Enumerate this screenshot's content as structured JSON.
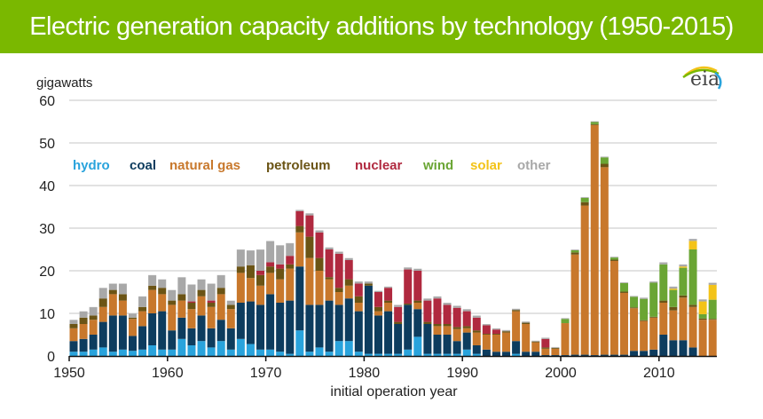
{
  "header": {
    "title": "Electric generation capacity additions by technology (1950-2015)",
    "background_color": "#7ab800"
  },
  "logo": {
    "text": "eia"
  },
  "chart_data": {
    "type": "bar",
    "stacked": true,
    "title": "Electric generation capacity additions by technology (1950-2015)",
    "ylabel": "gigawatts",
    "xlabel": "initial operation year",
    "ylim": [
      0,
      60
    ],
    "yticks": [
      0,
      10,
      20,
      30,
      40,
      50,
      60
    ],
    "xticks": [
      1950,
      1960,
      1970,
      1980,
      1990,
      2000,
      2010
    ],
    "grid": true,
    "legend_position": "top-left, inline above bars",
    "x": [
      1950,
      1951,
      1952,
      1953,
      1954,
      1955,
      1956,
      1957,
      1958,
      1959,
      1960,
      1961,
      1962,
      1963,
      1964,
      1965,
      1966,
      1967,
      1968,
      1969,
      1970,
      1971,
      1972,
      1973,
      1974,
      1975,
      1976,
      1977,
      1978,
      1979,
      1980,
      1981,
      1982,
      1983,
      1984,
      1985,
      1986,
      1987,
      1988,
      1989,
      1990,
      1991,
      1992,
      1993,
      1994,
      1995,
      1996,
      1997,
      1998,
      1999,
      2000,
      2001,
      2002,
      2003,
      2004,
      2005,
      2006,
      2007,
      2008,
      2009,
      2010,
      2011,
      2012,
      2013,
      2014,
      2015
    ],
    "series": [
      {
        "name": "hydro",
        "color": "#29a3dc",
        "values": [
          1,
          1,
          1.5,
          2,
          1,
          1.5,
          1.2,
          1.5,
          2.5,
          1.5,
          1.5,
          4,
          2.5,
          3.5,
          2,
          3.5,
          1.5,
          4,
          2.8,
          1.5,
          1.5,
          1,
          0.5,
          6,
          1,
          2,
          1,
          3.5,
          3.5,
          1,
          0.5,
          0.5,
          0.5,
          0.5,
          1.5,
          4.5,
          0.5,
          0.5,
          0.5,
          0.5,
          1.5,
          0.5,
          0,
          0,
          0,
          0.5,
          0,
          0,
          0,
          0,
          0,
          0,
          0,
          0,
          0,
          0,
          0,
          0,
          0,
          0,
          0,
          0,
          0,
          0,
          0,
          0
        ]
      },
      {
        "name": "coal",
        "color": "#0d3c5e",
        "values": [
          2.5,
          3,
          3.5,
          6,
          8.5,
          8,
          3.5,
          5.5,
          7.5,
          9,
          4.5,
          5,
          4,
          6,
          4.5,
          5,
          5,
          8.5,
          10,
          10.5,
          13,
          11.5,
          12.5,
          15,
          11,
          10,
          12,
          8.5,
          10,
          9.5,
          16,
          9,
          10,
          7,
          10.5,
          6.5,
          7,
          4.5,
          4.5,
          3,
          4,
          2,
          1.5,
          1,
          1,
          3,
          1,
          1,
          0.2,
          0.2,
          0.2,
          0.3,
          0.3,
          0.2,
          0.3,
          0.3,
          0.3,
          1.2,
          1.2,
          1.5,
          5,
          3.7,
          3.7,
          2,
          0,
          0
        ]
      },
      {
        "name": "natural gas",
        "color": "#c8782c",
        "values": [
          3,
          3.5,
          3.5,
          3.5,
          5,
          3.5,
          4,
          3.5,
          5.5,
          4,
          6,
          4,
          4.5,
          4.5,
          5,
          6,
          4.5,
          7,
          5.5,
          4.5,
          5,
          5.5,
          7.5,
          8,
          11,
          8,
          5,
          3,
          3,
          2,
          0,
          1,
          2,
          0,
          0,
          1.5,
          0,
          2,
          2,
          2.8,
          1,
          3,
          3.5,
          4,
          4.5,
          7,
          6.5,
          2.2,
          1.5,
          1.5,
          7.5,
          23.5,
          35,
          54,
          44,
          22,
          14.5,
          10,
          7,
          7.5,
          7.5,
          7,
          10,
          9.5,
          8.5,
          8.5
        ]
      },
      {
        "name": "petroleum",
        "color": "#6b5415",
        "values": [
          1,
          1.5,
          1,
          2,
          1,
          1.5,
          0.3,
          1,
          1,
          1.5,
          1,
          1.5,
          1.5,
          1.5,
          1,
          1.5,
          1,
          1.5,
          3,
          2.5,
          1.5,
          2.5,
          1,
          1.5,
          5,
          3,
          0.5,
          1,
          1.5,
          1.5,
          0.5,
          1,
          0.5,
          0.5,
          0.3,
          0.5,
          0.5,
          0.5,
          0.5,
          0.5,
          0.5,
          0.5,
          0.2,
          0.2,
          0.3,
          0.3,
          0.3,
          0.2,
          0.3,
          0.2,
          0,
          0.5,
          0.8,
          0.2,
          0.8,
          0.3,
          0.3,
          0.2,
          0.2,
          0.2,
          0.5,
          0.8,
          0.5,
          0.5,
          0.3,
          0.2
        ]
      },
      {
        "name": "nuclear",
        "color": "#b0293f",
        "values": [
          0,
          0,
          0,
          0,
          0,
          0,
          0,
          0,
          0,
          0,
          0,
          0,
          0.3,
          0,
          0.5,
          0,
          0,
          0,
          0,
          1,
          1,
          1,
          2,
          3.5,
          5,
          6,
          6.5,
          8,
          4.5,
          3,
          0,
          3.5,
          3,
          3.5,
          8,
          7,
          5,
          6,
          4.5,
          4.5,
          3.5,
          3,
          2,
          1,
          0,
          0,
          0,
          0,
          2,
          0,
          0,
          0,
          0,
          0,
          0,
          0,
          0,
          0,
          0,
          0,
          0,
          0,
          0,
          0,
          0,
          0
        ]
      },
      {
        "name": "wind",
        "color": "#6aa534",
        "values": [
          0,
          0,
          0,
          0,
          0,
          0,
          0,
          0,
          0,
          0,
          0,
          0,
          0,
          0,
          0,
          0,
          0,
          0,
          0,
          0,
          0,
          0,
          0,
          0,
          0,
          0,
          0,
          0,
          0,
          0,
          0,
          0,
          0,
          0,
          0,
          0,
          0,
          0,
          0,
          0,
          0,
          0,
          0,
          0,
          0,
          0,
          0,
          0,
          0,
          0,
          1,
          0.5,
          1,
          0.5,
          1.5,
          0.5,
          2,
          2.5,
          5,
          8,
          8.5,
          4,
          6.5,
          13,
          1,
          4.5
        ]
      },
      {
        "name": "solar",
        "color": "#f3c318",
        "values": [
          0,
          0,
          0,
          0,
          0,
          0,
          0,
          0,
          0,
          0,
          0,
          0,
          0,
          0,
          0,
          0,
          0,
          0,
          0,
          0,
          0,
          0,
          0,
          0,
          0,
          0,
          0,
          0,
          0,
          0,
          0,
          0,
          0,
          0,
          0,
          0,
          0,
          0,
          0,
          0,
          0,
          0,
          0,
          0,
          0,
          0,
          0,
          0,
          0,
          0,
          0,
          0,
          0,
          0,
          0,
          0,
          0,
          0,
          0,
          0,
          0,
          0.3,
          0.3,
          2,
          3,
          3.5
        ]
      },
      {
        "name": "other",
        "color": "#a8a8a8",
        "values": [
          1,
          1.5,
          2,
          2.5,
          1.5,
          2.5,
          1,
          2.5,
          2.5,
          2,
          2.5,
          4,
          4,
          2.5,
          4,
          3,
          1,
          4,
          3.5,
          5,
          5,
          4.5,
          3,
          0.3,
          0.5,
          0.5,
          0.5,
          0.5,
          0.5,
          0.5,
          0.5,
          0.3,
          0.3,
          0.5,
          0.5,
          0.5,
          0.5,
          0.5,
          0.5,
          0.5,
          0.5,
          0.5,
          0.3,
          0.3,
          0.3,
          0.3,
          0.3,
          0.2,
          0.3,
          0.2,
          0.2,
          0.2,
          0.2,
          0.2,
          0.2,
          0.2,
          0.2,
          0.2,
          0.3,
          0.3,
          0.5,
          0.5,
          0.5,
          0.5,
          0.5,
          0.5
        ]
      }
    ]
  }
}
